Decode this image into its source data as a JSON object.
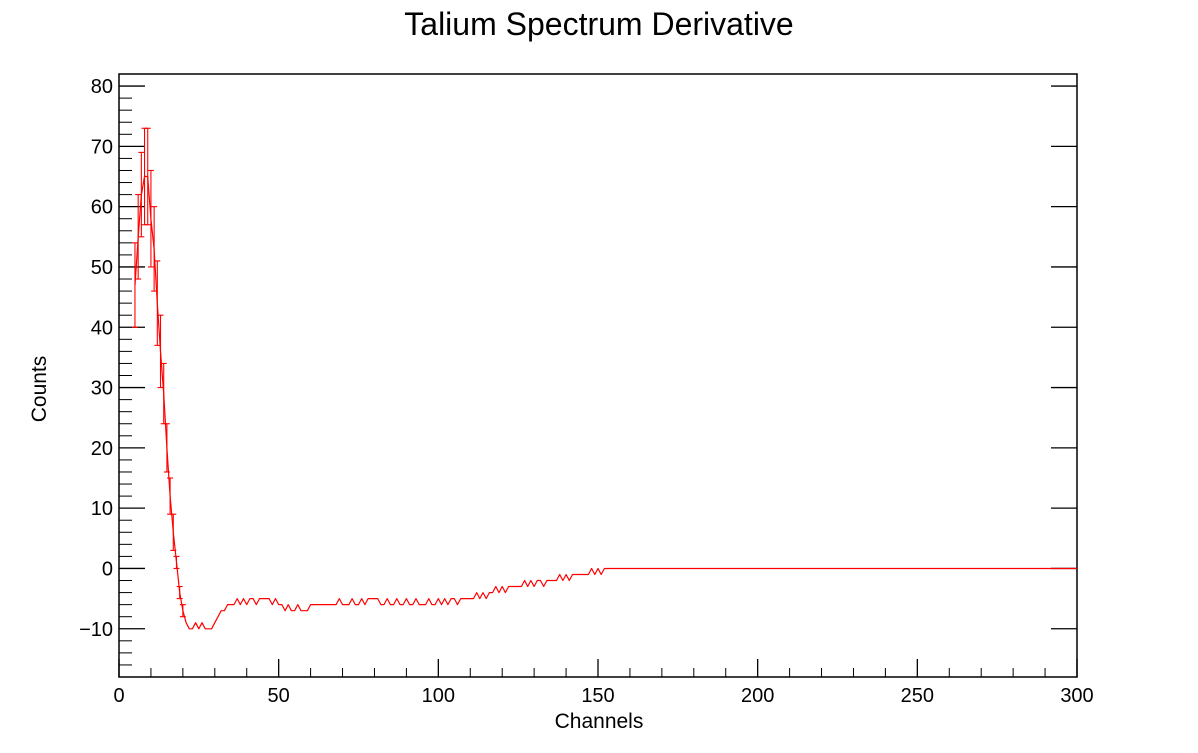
{
  "chart_data": {
    "type": "line",
    "title": "Talium Spectrum Derivative",
    "xlabel": "Channels",
    "ylabel": "Counts",
    "xlim": [
      0,
      300
    ],
    "ylim": [
      -18,
      82
    ],
    "x_ticks": [
      0,
      50,
      100,
      150,
      200,
      250,
      300
    ],
    "y_ticks": [
      -10,
      0,
      10,
      20,
      30,
      40,
      50,
      60,
      70,
      80
    ],
    "x_tick_labels": [
      "0",
      "50",
      "100",
      "150",
      "200",
      "250",
      "300"
    ],
    "y_tick_labels": [
      "−10",
      "0",
      "10",
      "20",
      "30",
      "40",
      "50",
      "60",
      "70",
      "80"
    ],
    "grid": false,
    "legend": "none",
    "line_color": "#ff0000",
    "series": [
      {
        "x": [
          5,
          6,
          7,
          8,
          9,
          10,
          11,
          12,
          13,
          14,
          15,
          16,
          17,
          18,
          19,
          20,
          21,
          22,
          23,
          24,
          25,
          26,
          27,
          28,
          29,
          30,
          31,
          32,
          33,
          34,
          35,
          36,
          37,
          38,
          39,
          40,
          41,
          42,
          43,
          44,
          45,
          46,
          47,
          48,
          49,
          50,
          51,
          52,
          53,
          54,
          55,
          56,
          57,
          58,
          59,
          60,
          61,
          62,
          63,
          64,
          65,
          66,
          67,
          68,
          69,
          70,
          71,
          72,
          73,
          74,
          75,
          76,
          77,
          78,
          79,
          80,
          81,
          82,
          83,
          84,
          85,
          86,
          87,
          88,
          89,
          90,
          91,
          92,
          93,
          94,
          95,
          96,
          97,
          98,
          99,
          100,
          101,
          102,
          103,
          104,
          105,
          106,
          107,
          108,
          109,
          110,
          111,
          112,
          113,
          114,
          115,
          116,
          117,
          118,
          119,
          120,
          121,
          122,
          123,
          124,
          125,
          126,
          127,
          128,
          129,
          130,
          131,
          132,
          133,
          134,
          135,
          136,
          137,
          138,
          139,
          140,
          141,
          142,
          143,
          144,
          145,
          146,
          147,
          148,
          149,
          150,
          151,
          152,
          153,
          154,
          155,
          300
        ],
        "y": [
          47,
          55,
          62,
          65,
          65,
          58,
          53,
          44,
          36,
          29,
          20,
          12,
          6,
          1,
          -4,
          -7,
          -9,
          -10,
          -10,
          -9,
          -10,
          -9,
          -10,
          -10,
          -10,
          -9,
          -8,
          -7,
          -7,
          -6,
          -6,
          -6,
          -5,
          -6,
          -5,
          -6,
          -5,
          -5,
          -6,
          -5,
          -5,
          -5,
          -5,
          -6,
          -5,
          -6,
          -6,
          -7,
          -6,
          -7,
          -7,
          -6,
          -7,
          -7,
          -7,
          -6,
          -6,
          -6,
          -6,
          -6,
          -6,
          -6,
          -6,
          -6,
          -5,
          -6,
          -6,
          -6,
          -5,
          -6,
          -6,
          -5,
          -6,
          -5,
          -5,
          -5,
          -5,
          -6,
          -6,
          -5,
          -6,
          -6,
          -5,
          -6,
          -6,
          -5,
          -6,
          -6,
          -5,
          -6,
          -6,
          -6,
          -5,
          -6,
          -6,
          -5,
          -6,
          -5,
          -6,
          -5,
          -5,
          -6,
          -5,
          -5,
          -5,
          -5,
          -5,
          -4,
          -5,
          -4,
          -5,
          -4,
          -4,
          -3,
          -4,
          -3,
          -4,
          -3,
          -3,
          -3,
          -3,
          -3,
          -2,
          -3,
          -2,
          -3,
          -2,
          -2,
          -3,
          -2,
          -2,
          -2,
          -2,
          -1,
          -2,
          -1,
          -2,
          -1,
          -1,
          -1,
          -1,
          -1,
          -1,
          0,
          -1,
          0,
          -1,
          0,
          0,
          0,
          0,
          0
        ],
        "err": [
          7,
          7,
          7,
          8,
          8,
          8,
          7,
          7,
          6,
          5,
          4,
          3,
          3,
          1,
          1,
          1,
          0,
          0,
          0,
          0,
          0,
          0,
          0,
          0,
          0,
          0,
          0,
          0,
          0,
          0,
          0,
          0,
          0,
          0,
          0,
          0,
          0,
          0,
          0,
          0,
          0,
          0,
          0,
          0,
          0,
          0,
          0,
          0,
          0,
          0,
          0,
          0,
          0,
          0,
          0,
          0,
          0,
          0,
          0,
          0,
          0,
          0,
          0,
          0,
          0,
          0,
          0,
          0,
          0,
          0,
          0,
          0,
          0,
          0,
          0,
          0,
          0,
          0,
          0,
          0,
          0,
          0,
          0,
          0,
          0,
          0,
          0,
          0,
          0,
          0,
          0,
          0,
          0,
          0,
          0,
          0,
          0,
          0,
          0,
          0,
          0,
          0,
          0,
          0,
          0,
          0,
          0,
          0,
          0,
          0,
          0,
          0,
          0,
          0,
          0,
          0,
          0,
          0,
          0,
          0,
          0,
          0,
          0,
          0,
          0,
          0,
          0,
          0,
          0,
          0,
          0,
          0,
          0,
          0,
          0,
          0,
          0,
          0,
          0,
          0,
          0,
          0,
          0,
          0,
          0,
          0,
          0,
          0,
          0,
          0,
          0,
          0
        ]
      }
    ]
  }
}
